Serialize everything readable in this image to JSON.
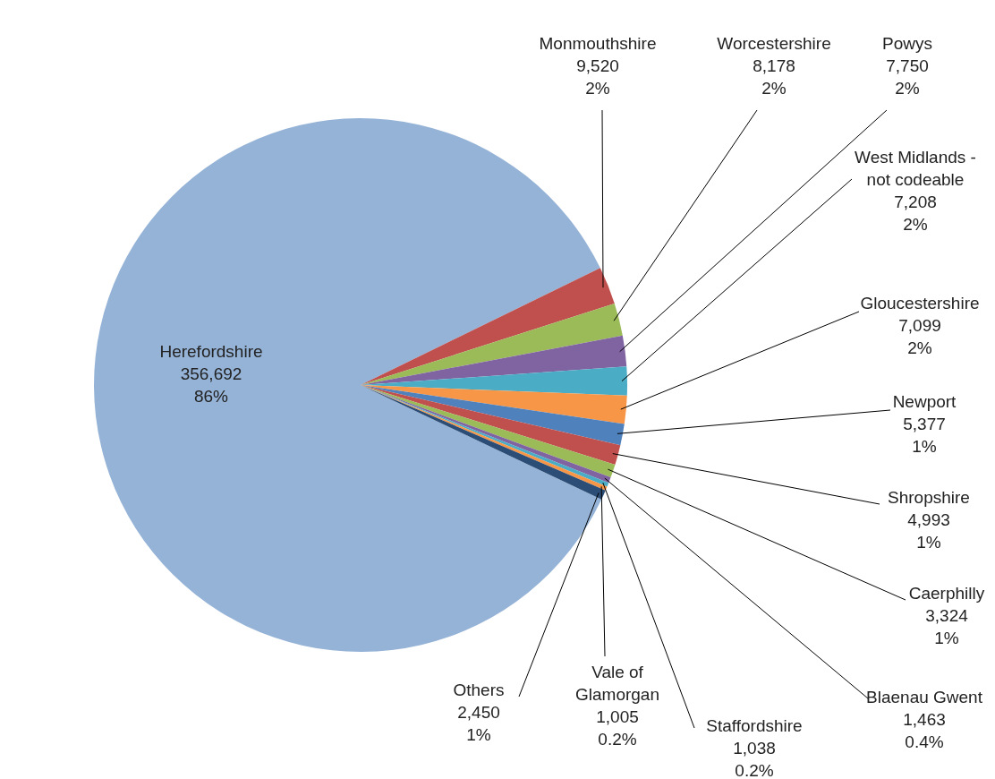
{
  "chart_data": {
    "type": "pie",
    "categories": [
      "Herefordshire",
      "Monmouthshire",
      "Worcestershire",
      "Powys",
      "West Midlands - not codeable",
      "Gloucestershire",
      "Newport",
      "Shropshire",
      "Caerphilly",
      "Blaenau Gwent",
      "Staffordshire",
      "Vale of Glamorgan",
      "Others"
    ],
    "values": [
      356692,
      9520,
      8178,
      7750,
      7208,
      7099,
      5377,
      4993,
      3324,
      1463,
      1038,
      1005,
      2450
    ],
    "value_labels": [
      "356,692\n86%",
      "9,520\n2%",
      "8,178\n2%",
      "7,750\n2%",
      "7,208\n2%",
      "7,099\n2%",
      "5,377\n1%",
      "4,993\n1%",
      "3,324\n1%",
      "1,463\n0.4%",
      "1,038\n0.2%",
      "1,005\n0.2%",
      "2,450\n1%"
    ],
    "colors": [
      "#95b3d7",
      "#c0504d",
      "#9bbb59",
      "#8064a2",
      "#4bacc6",
      "#f79646",
      "#4f81bd",
      "#c0504d",
      "#9bbb59",
      "#8064a2",
      "#4bacc6",
      "#f79646",
      "#2c4d75"
    ]
  }
}
